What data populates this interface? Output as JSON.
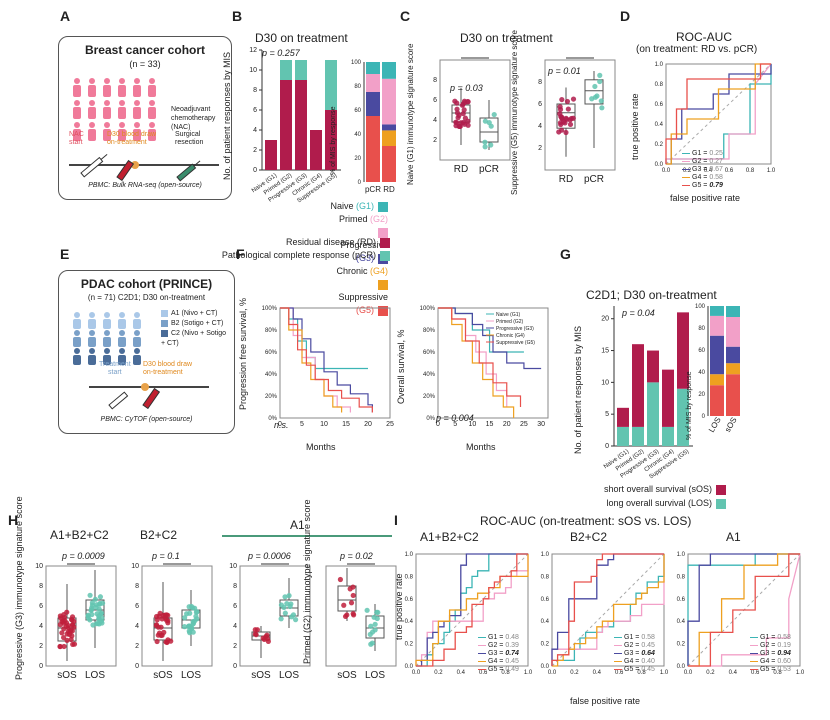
{
  "panels": {
    "A": "A",
    "B": "B",
    "C": "C",
    "D": "D",
    "E": "E",
    "F": "F",
    "G": "G",
    "H": "H",
    "I": "I"
  },
  "a": {
    "title": "Breast cancer cohort",
    "n": "(n = 33)",
    "nac": "Neoadjuvant\nchemotherapy\n(NAC)",
    "t_start": "NAC\nstart",
    "t_draw": "D30 blood draw\non-treatment",
    "t_surg": "Surgical\nresection",
    "pbmc": "PBMC: Bulk RNA-seq (open-source)"
  },
  "b": {
    "title": "D30 on treatment",
    "pval": "p = 0.257",
    "ylabel": "No. of patient responses by MIS",
    "ylabel2": "% of MIS by response",
    "xcats": [
      "Naive (G1)",
      "Primed (G2)",
      "Progressive (G3)",
      "Chronic (G4)",
      "Suppressive (G5)"
    ],
    "xcats2": [
      "pCR",
      "RD"
    ]
  },
  "legend_mis": [
    {
      "label": "Naive",
      "tag": "(G1)",
      "color": "#3cb5b5"
    },
    {
      "label": "Primed",
      "tag": "(G2)",
      "color": "#f2a0c8"
    },
    {
      "label": "Progressive",
      "tag": "(G3)",
      "color": "#4a4aa0"
    },
    {
      "label": "Chronic",
      "tag": "(G4)",
      "color": "#eea020"
    },
    {
      "label": "Suppressive",
      "tag": "(G5)",
      "color": "#e8504c"
    }
  ],
  "legend_resp": [
    {
      "label": "Residual disease (RD)",
      "color": "#b01c4c"
    },
    {
      "label": "Pathological complete response (pCR)",
      "color": "#62c4b0"
    }
  ],
  "c": {
    "title": "D30 on treatment",
    "p1": "p = 0.03",
    "p2": "p = 0.01",
    "y1": "Naive (G1) immunotype signature score",
    "y2": "Suppressive (G5) immunotype signature score",
    "x": [
      "RD",
      "pCR"
    ]
  },
  "d": {
    "title": "ROC-AUC",
    "subtitle": "(on treatment: RD vs. pCR)",
    "xlabel": "false positive rate",
    "ylabel": "true positive rate",
    "auc": [
      {
        "g": "G1",
        "v": "0.25"
      },
      {
        "g": "G2",
        "v": "0.27"
      },
      {
        "g": "G3",
        "v": "0.67"
      },
      {
        "g": "G4",
        "v": "0.58"
      },
      {
        "g": "G5",
        "v": "0.79"
      }
    ]
  },
  "e": {
    "title": "PDAC cohort (PRINCE)",
    "n": "(n = 71) C2D1; D30 on-treatment",
    "arms": [
      "A1 (Nivo + CT)",
      "B2 (Sotigo + CT)",
      "C2 (Nivo + Sotigo\n+ CT)"
    ],
    "t_start": "Treatment\nstart",
    "t_draw": "D30 blood draw\non-treatment",
    "pbmc": "PBMC: CyTOF (open-source)"
  },
  "f": {
    "y1": "Progression free survival, %",
    "y2": "Overall survival, %",
    "x": "Months",
    "ns": "n.s.",
    "p": "p = 0.004",
    "legend": [
      "Naive (G1)",
      "Primed (G2)",
      "Progressive (G3)",
      "Chronic (G4)",
      "Suppressive (G5)"
    ]
  },
  "g": {
    "title": "C2D1; D30 on-treatment",
    "pval": "p = 0.04",
    "ylabel": "No. of patient responses by MIS",
    "ylabel2": "% of MIS by response",
    "xcats": [
      "Naive (G1)",
      "Primed (G2)",
      "Progressive (G3)",
      "Chronic (G4)",
      "Suppressive (G5)"
    ],
    "xcats2": [
      "LOS",
      "sOS"
    ],
    "leg_sos": "short overall survival (sOS)",
    "leg_los": "long overall survival (LOS)"
  },
  "h": {
    "t1": "A1+B2+C2",
    "t2": "B2+C2",
    "t3": "A1",
    "p1": "p = 0.0009",
    "p2": "p = 0.1",
    "p3": "p = 0.0006",
    "p4": "p = 0.02",
    "y1": "Progressive (G3) immunotype signature score",
    "y2": "Primed (G2) immunotype signature score",
    "x": [
      "sOS",
      "LOS"
    ]
  },
  "i": {
    "title": "ROC-AUC (on-treatment: sOS vs. LOS)",
    "t1": "A1+B2+C2",
    "t2": "B2+C2",
    "t3": "A1",
    "xlabel": "false positive rate",
    "ylabel": "true positive rate",
    "auc1": [
      {
        "g": "G1",
        "v": "0.48"
      },
      {
        "g": "G2",
        "v": "0.39"
      },
      {
        "g": "G3",
        "v": "0.74"
      },
      {
        "g": "G4",
        "v": "0.45"
      },
      {
        "g": "G5",
        "v": "0.49"
      }
    ],
    "auc2": [
      {
        "g": "G1",
        "v": "0.58"
      },
      {
        "g": "G2",
        "v": "0.45"
      },
      {
        "g": "G3",
        "v": "0.64"
      },
      {
        "g": "G4",
        "v": "0.40"
      },
      {
        "g": "G5",
        "v": "0.45"
      }
    ],
    "auc3": [
      {
        "g": "G1",
        "v": "0.58"
      },
      {
        "g": "G2",
        "v": "0.19"
      },
      {
        "g": "G3",
        "v": "0.94"
      },
      {
        "g": "G4",
        "v": "0.60"
      },
      {
        "g": "G5",
        "v": "0.53"
      }
    ]
  },
  "chart_data": [
    {
      "type": "bar",
      "panel": "B",
      "title": "D30 on treatment",
      "ylabel": "No. of patient responses by MIS",
      "categories": [
        "Naive (G1)",
        "Primed (G2)",
        "Progressive (G3)",
        "Chronic (G4)",
        "Suppressive (G5)"
      ],
      "series": [
        {
          "name": "Residual disease (RD)",
          "values": [
            3,
            9,
            9,
            4,
            6
          ]
        },
        {
          "name": "Pathological complete response (pCR)",
          "values": [
            0,
            2,
            2,
            0,
            5
          ]
        }
      ],
      "ylim": [
        0,
        12
      ]
    },
    {
      "type": "bar",
      "panel": "B-right",
      "ylabel": "% of MIS by response",
      "categories": [
        "pCR",
        "RD"
      ],
      "series": [
        {
          "name": "Suppressive (G5)",
          "values": [
            55,
            30
          ]
        },
        {
          "name": "Chronic (G4)",
          "values": [
            0,
            13
          ]
        },
        {
          "name": "Progressive (G3)",
          "values": [
            20,
            5
          ]
        },
        {
          "name": "Primed (G2)",
          "values": [
            15,
            38
          ]
        },
        {
          "name": "Naive (G1)",
          "values": [
            10,
            14
          ]
        }
      ],
      "ylim": [
        0,
        100
      ]
    },
    {
      "type": "bar",
      "panel": "G",
      "title": "C2D1; D30 on-treatment",
      "ylabel": "No. of patient responses by MIS",
      "categories": [
        "Naive (G1)",
        "Primed (G2)",
        "Progressive (G3)",
        "Chronic (G4)",
        "Suppressive (G5)"
      ],
      "series": [
        {
          "name": "long overall survival (LOS)",
          "values": [
            3,
            3,
            10,
            3,
            9
          ]
        },
        {
          "name": "short overall survival (sOS)",
          "values": [
            3,
            13,
            5,
            9,
            12
          ]
        }
      ],
      "ylim": [
        0,
        22
      ]
    },
    {
      "type": "bar",
      "panel": "G-right",
      "ylabel": "% of MIS by response",
      "categories": [
        "LOS",
        "sOS"
      ],
      "series": [
        {
          "name": "Suppressive (G5)",
          "values": [
            28,
            38
          ]
        },
        {
          "name": "Chronic (G4)",
          "values": [
            10,
            10
          ]
        },
        {
          "name": "Progressive (G3)",
          "values": [
            35,
            15
          ]
        },
        {
          "name": "Primed (G2)",
          "values": [
            18,
            27
          ]
        },
        {
          "name": "Naive (G1)",
          "values": [
            9,
            10
          ]
        }
      ],
      "ylim": [
        0,
        100
      ]
    }
  ]
}
